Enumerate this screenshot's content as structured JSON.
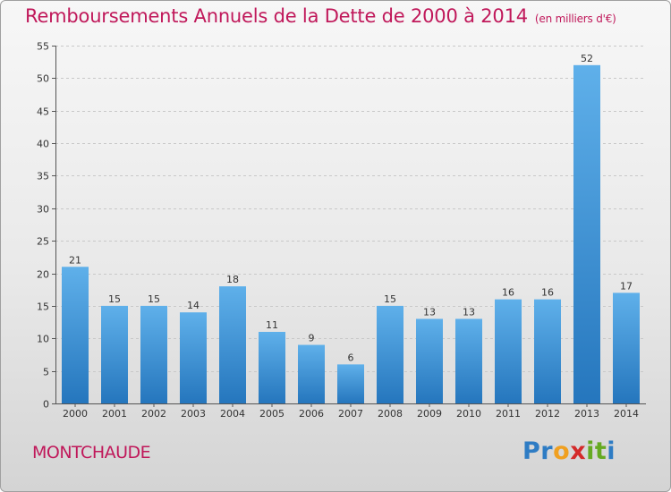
{
  "title": "Remboursements Annuels de la Dette de 2000 à 2014",
  "unit": "(en milliers d'€)",
  "place": "MONTCHAUDE",
  "logo": {
    "text": "Proxiti",
    "letters": [
      "P",
      "r",
      "o",
      "x",
      "i",
      "t",
      "i"
    ],
    "colors": [
      "#2e7cc4",
      "#2e7cc4",
      "#f0a020",
      "#d42a2a",
      "#66aa22",
      "#66aa22",
      "#2e7cc4"
    ]
  },
  "colors": {
    "title": "#c0185a",
    "bar_top": "#5fb0ea",
    "bar_bottom": "#2576bd",
    "grid": "#c8c8c8"
  },
  "chart_data": {
    "type": "bar",
    "title": "Remboursements Annuels de la Dette de 2000 à 2014",
    "xlabel": "",
    "ylabel": "en milliers d'€",
    "categories": [
      "2000",
      "2001",
      "2002",
      "2003",
      "2004",
      "2005",
      "2006",
      "2007",
      "2008",
      "2009",
      "2010",
      "2011",
      "2012",
      "2013",
      "2014"
    ],
    "values": [
      21,
      15,
      15,
      14,
      18,
      11,
      9,
      6,
      15,
      13,
      13,
      16,
      16,
      52,
      17
    ],
    "ylim": [
      0,
      55
    ],
    "yticks": [
      0,
      5,
      10,
      15,
      20,
      25,
      30,
      35,
      40,
      45,
      50,
      55
    ],
    "grid": true
  }
}
